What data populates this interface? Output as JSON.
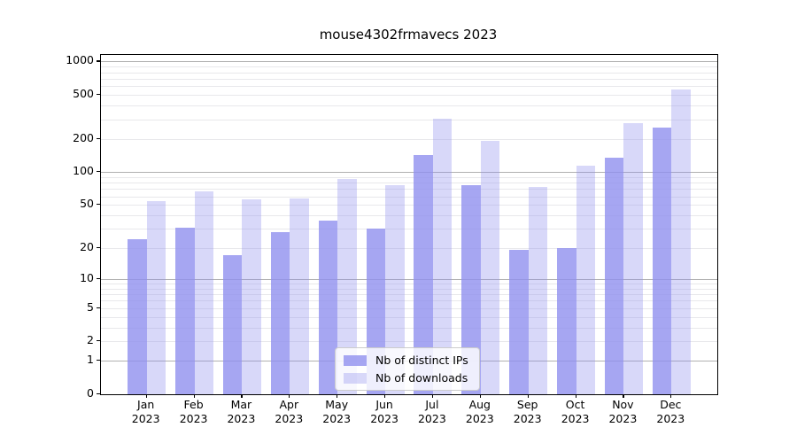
{
  "figure": {
    "title": "mouse4302frmavecs 2023"
  },
  "chart_data": {
    "type": "bar",
    "title": "mouse4302frmavecs 2023",
    "categories": [
      "Jan",
      "Feb",
      "Mar",
      "Apr",
      "May",
      "Jun",
      "Jul",
      "Aug",
      "Sep",
      "Oct",
      "Nov",
      "Dec"
    ],
    "year": "2023",
    "series": [
      {
        "name": "Nb of distinct IPs",
        "color": "rgba(144,144,239,0.8)",
        "values": [
          24,
          31,
          17,
          28,
          36,
          30,
          142,
          76,
          19,
          20,
          135,
          255
        ]
      },
      {
        "name": "Nb of downloads",
        "color": "rgba(144,144,239,0.35)",
        "values": [
          54,
          66,
          56,
          57,
          86,
          76,
          304,
          190,
          73,
          115,
          277,
          558
        ]
      }
    ],
    "xlabel": "",
    "ylabel": "",
    "yscale": "log1p",
    "ylim": [
      0,
      1145
    ],
    "ytick_labels": [
      "0",
      "1",
      "2",
      "5",
      "10",
      "20",
      "50",
      "100",
      "200",
      "500",
      "1000"
    ],
    "grid": "horizontal major (powers of 10, gray) and minor (2-9 per decade, light gray)",
    "legend_position": "inside lower-center"
  },
  "colors": {
    "bar_base": "#9090ef",
    "major_grid": "#b0b0b0",
    "minor_grid": "#e8e8eb",
    "axis": "#000000",
    "legend_border": "#cccccc"
  }
}
